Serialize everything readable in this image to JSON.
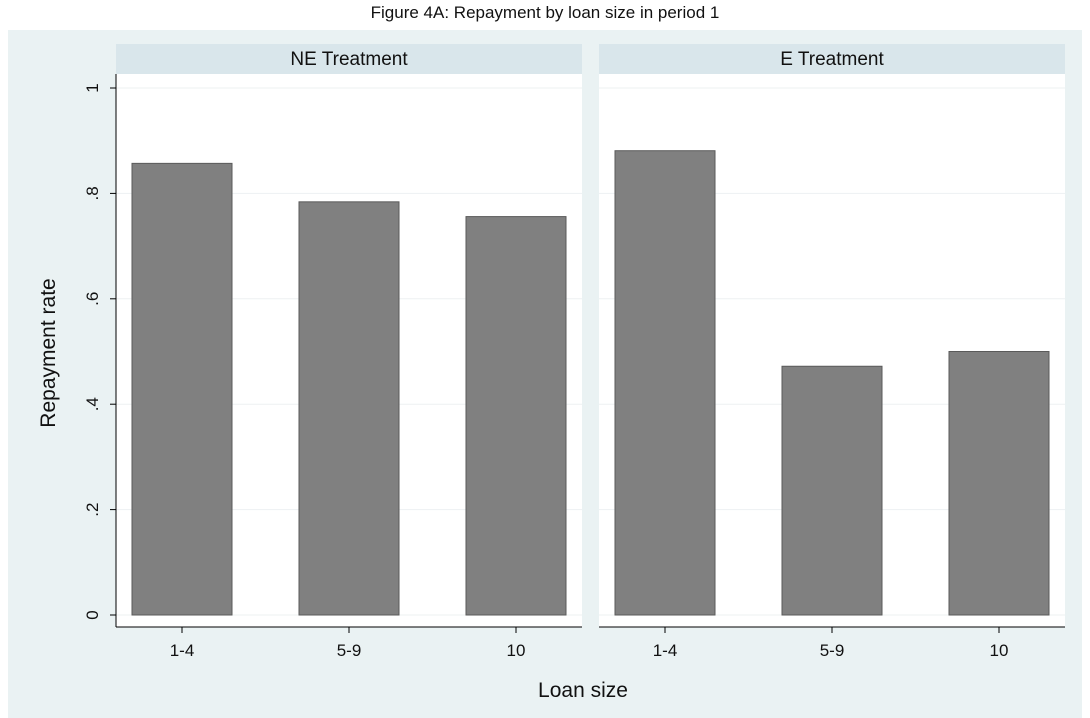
{
  "figure": {
    "title": "Figure 4A: Repayment by loan size in period 1"
  },
  "chart_data": {
    "type": "bar",
    "ylabel": "Repayment rate",
    "xlabel": "Loan size",
    "ylim": [
      0,
      1
    ],
    "yticks": [
      0,
      0.2,
      0.4,
      0.6,
      0.8,
      1
    ],
    "ytick_labels": [
      "0",
      ".2",
      ".4",
      ".6",
      ".8",
      "1"
    ],
    "grid": true,
    "categories": [
      "1-4",
      "5-9",
      "10"
    ],
    "panels": [
      {
        "name": "NE Treatment",
        "values": [
          0.857,
          0.784,
          0.756
        ]
      },
      {
        "name": "E Treatment",
        "values": [
          0.881,
          0.472,
          0.5
        ]
      }
    ],
    "colors": {
      "bar": "#808080",
      "bar_edge": "#5a5a5a",
      "background": "#eaf2f3",
      "strip": "#d9e6eb",
      "plot": "#ffffff",
      "grid": "#edf1f2"
    }
  }
}
